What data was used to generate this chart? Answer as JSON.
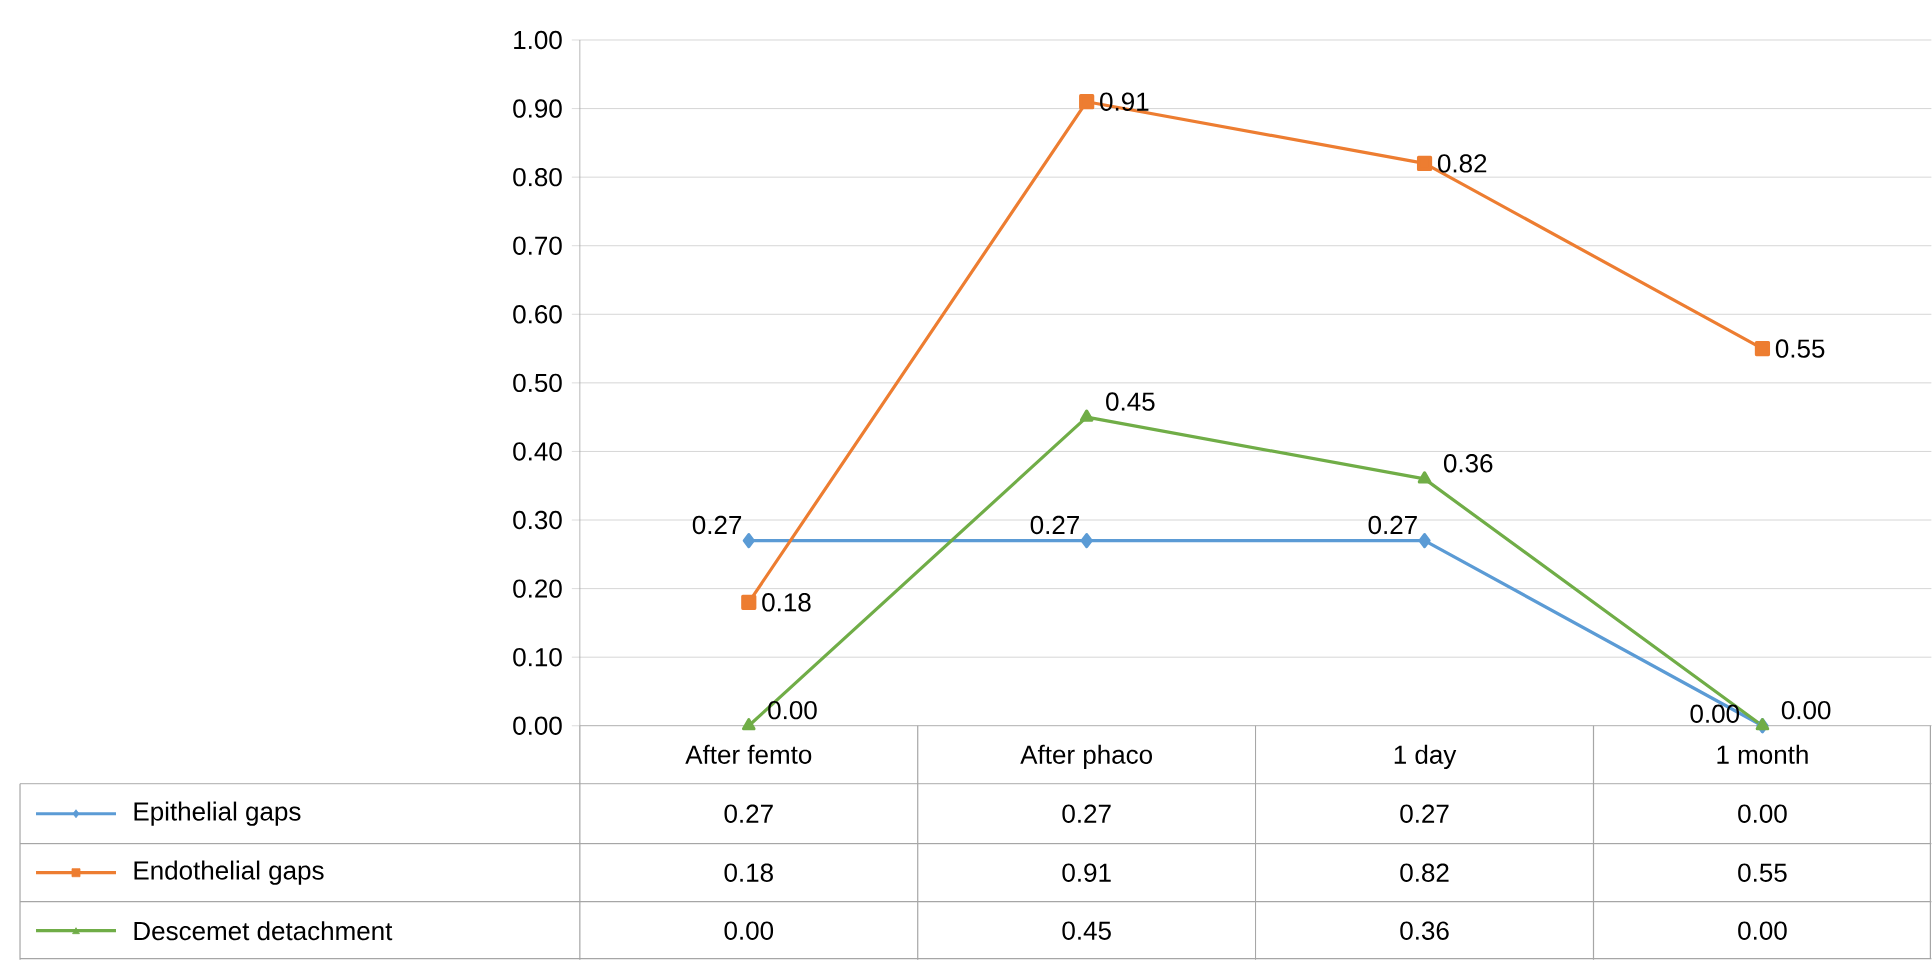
{
  "chart_data": {
    "type": "line",
    "categories": [
      "After femto",
      "After phaco",
      "1 day",
      "1 month"
    ],
    "series": [
      {
        "name": "Epithelial gaps",
        "color": "#5b9bd5",
        "marker": "diamond",
        "values": [
          0.27,
          0.27,
          0.27,
          0.0
        ],
        "value_labels": [
          "0.27",
          "0.27",
          "0.27",
          "0.00"
        ]
      },
      {
        "name": "Endothelial gaps",
        "color": "#ed7d31",
        "marker": "square",
        "values": [
          0.18,
          0.91,
          0.82,
          0.55
        ],
        "value_labels": [
          "0.18",
          "0.91",
          "0.82",
          "0.55"
        ]
      },
      {
        "name": "Descemet detachment",
        "color": "#70ad47",
        "marker": "triangle",
        "values": [
          0.0,
          0.45,
          0.36,
          0.0
        ],
        "value_labels": [
          "0.00",
          "0.45",
          "0.36",
          "0.00"
        ]
      }
    ],
    "ylim": [
      0,
      1
    ],
    "yticks": [
      {
        "value": 0,
        "label": "0.00"
      },
      {
        "value": 0.1,
        "label": "0.10"
      },
      {
        "value": 0.2,
        "label": "0.20"
      },
      {
        "value": 0.3,
        "label": "0.30"
      },
      {
        "value": 0.4,
        "label": "0.40"
      },
      {
        "value": 0.5,
        "label": "0.50"
      },
      {
        "value": 0.6,
        "label": "0.60"
      },
      {
        "value": 0.7,
        "label": "0.70"
      },
      {
        "value": 0.8,
        "label": "0.80"
      },
      {
        "value": 0.9,
        "label": "0.90"
      },
      {
        "value": 1,
        "label": "1.00"
      }
    ],
    "grid": "y",
    "legend": "bottom"
  }
}
